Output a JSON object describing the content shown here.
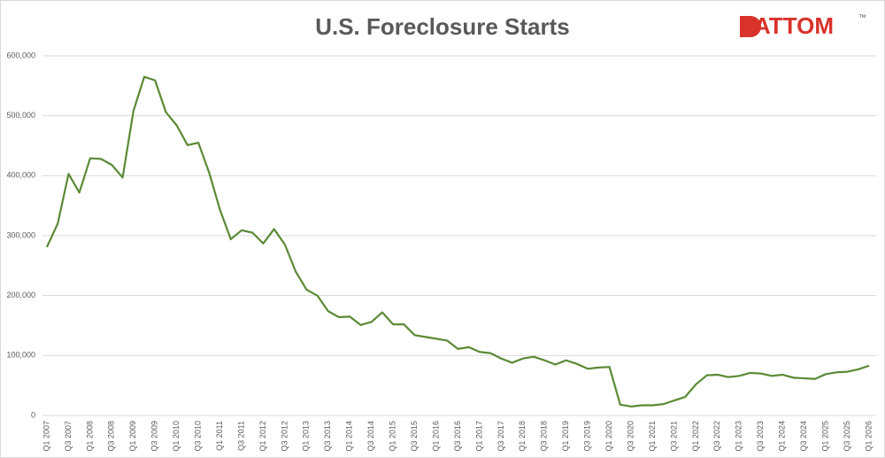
{
  "chart_data": {
    "type": "line",
    "title": "U.S. Foreclosure Starts",
    "logo": "ATTOM",
    "logo_mark": "™",
    "categories": [
      "Q1 2007",
      null,
      "Q3 2007",
      null,
      "Q1 2008",
      null,
      "Q3 2008",
      null,
      "Q1 2009",
      null,
      "Q3 2009",
      null,
      "Q1 2010",
      null,
      "Q3 2010",
      null,
      "Q1 2011",
      null,
      "Q3 2011",
      null,
      "Q1 2012",
      null,
      "Q3 2012",
      null,
      "Q1 2013",
      null,
      "Q3 2013",
      null,
      "Q1 2014",
      null,
      "Q3 2014",
      null,
      "Q1 2015",
      null,
      "Q3 2015",
      null,
      "Q1 2016",
      null,
      "Q3 2016",
      null,
      "Q1 2017",
      null,
      "Q3 2017",
      null,
      "Q1 2018",
      null,
      "Q3 2018",
      null,
      "Q1 2019",
      null,
      "Q3 2019",
      null,
      "Q1 2020",
      null,
      "Q3 2020",
      null,
      "Q1 2021",
      null,
      "Q3 2021",
      null,
      "Q1 2022",
      null,
      "Q3 2022",
      null,
      "Q1 2023",
      null,
      "Q3 2023",
      null,
      "Q1 2024",
      null,
      "Q3 2024",
      null,
      "Q1 2025",
      null,
      "Q3 2025",
      null,
      "Q1 2026"
    ],
    "values": [
      281000,
      320000,
      403000,
      372000,
      429000,
      428000,
      418000,
      397000,
      508000,
      565000,
      559000,
      506000,
      484000,
      451000,
      455000,
      405000,
      343000,
      294000,
      309000,
      305000,
      287000,
      311000,
      285000,
      240000,
      210000,
      200000,
      174000,
      164000,
      165000,
      151000,
      156000,
      172000,
      152000,
      152000,
      134000,
      131000,
      128000,
      125000,
      111000,
      114000,
      106000,
      104000,
      95000,
      88000,
      95000,
      98000,
      92000,
      85000,
      92000,
      86000,
      78000,
      80000,
      81000,
      18000,
      15000,
      17000,
      17000,
      19000,
      25000,
      31000,
      52000,
      67000,
      68000,
      64000,
      66000,
      71000,
      70000,
      66000,
      68000,
      63000,
      62000,
      61000,
      69000,
      72000,
      73000,
      77000,
      83000
    ],
    "color": "#5b8a36",
    "ylim": [
      0,
      600000
    ],
    "yticks": [
      0,
      {
        "value": 100000,
        "label": "100,000"
      },
      {
        "value": 200000,
        "label": "200,000"
      },
      {
        "value": 300000,
        "label": "300,000"
      },
      {
        "value": 400000,
        "label": "400,000"
      },
      {
        "value": 500000,
        "label": "500,000"
      },
      {
        "value": 600000,
        "label": "600,000"
      }
    ],
    "grid": true
  }
}
